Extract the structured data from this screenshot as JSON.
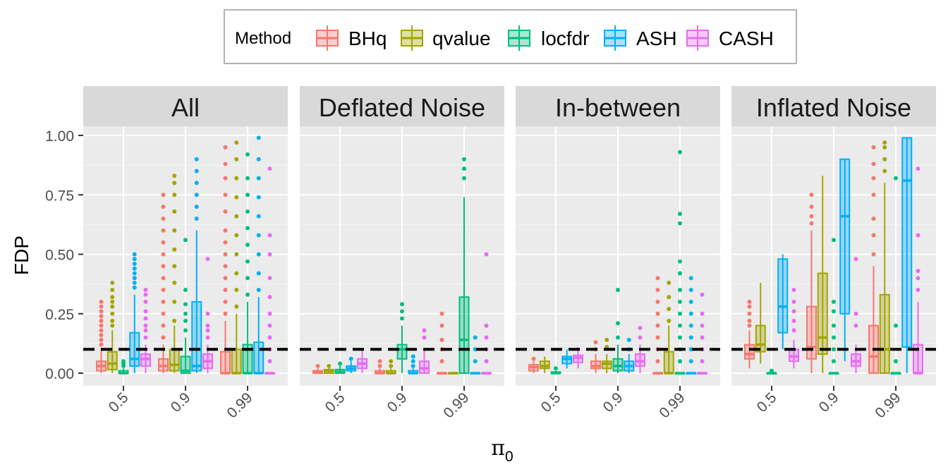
{
  "chart_data": {
    "type": "boxplot",
    "ylabel": "FDP",
    "xlabel_symbol": "π",
    "xlabel_subscript": "0",
    "ylim": [
      0,
      1.04
    ],
    "yticks": [
      "0.00",
      "0.25",
      "0.50",
      "0.75",
      "1.00"
    ],
    "categories": [
      "0.5",
      "0.9",
      "0.99"
    ],
    "reference_line": 0.1,
    "legend": {
      "title": "Method",
      "position": "top",
      "items": [
        {
          "name": "BHq",
          "color": "#F8766D"
        },
        {
          "name": "qvalue",
          "color": "#A3A500"
        },
        {
          "name": "locfdr",
          "color": "#00BF7D"
        },
        {
          "name": "ASH",
          "color": "#00B0F6"
        },
        {
          "name": "CASH",
          "color": "#E76BF3"
        }
      ]
    },
    "panels": [
      {
        "title": "All",
        "groups": [
          [
            {
              "q1": 0.01,
              "med": 0.03,
              "q3": 0.05,
              "lo": 0.0,
              "hi": 0.1,
              "out": [
                0.12,
                0.14,
                0.16,
                0.18,
                0.2,
                0.22,
                0.24,
                0.26,
                0.28,
                0.3
              ]
            },
            {
              "q1": 0.015,
              "med": 0.04,
              "q3": 0.09,
              "lo": 0.0,
              "hi": 0.18,
              "out": [
                0.2,
                0.22,
                0.25,
                0.28,
                0.3,
                0.32,
                0.35,
                0.38
              ]
            },
            {
              "q1": 0.0,
              "med": 0.0,
              "q3": 0.01,
              "lo": 0.0,
              "hi": 0.02,
              "out": [
                0.03,
                0.04,
                0.05
              ]
            },
            {
              "q1": 0.03,
              "med": 0.06,
              "q3": 0.17,
              "lo": 0.0,
              "hi": 0.33,
              "out": [
                0.36,
                0.38,
                0.4,
                0.42,
                0.44,
                0.46,
                0.48,
                0.5
              ]
            },
            {
              "q1": 0.03,
              "med": 0.06,
              "q3": 0.08,
              "lo": 0.0,
              "hi": 0.12,
              "out": [
                0.15,
                0.18,
                0.2,
                0.23,
                0.26,
                0.3,
                0.33,
                0.35
              ]
            }
          ],
          [
            {
              "q1": 0.01,
              "med": 0.03,
              "q3": 0.06,
              "lo": 0.0,
              "hi": 0.12,
              "out": [
                0.15,
                0.2,
                0.25,
                0.3,
                0.35,
                0.4,
                0.45,
                0.5,
                0.55,
                0.6,
                0.65,
                0.7,
                0.75
              ]
            },
            {
              "q1": 0.01,
              "med": 0.035,
              "q3": 0.1,
              "lo": 0.0,
              "hi": 0.2,
              "out": [
                0.22,
                0.3,
                0.38,
                0.45,
                0.52,
                0.6,
                0.68,
                0.75,
                0.8,
                0.83
              ]
            },
            {
              "q1": 0.0,
              "med": 0.01,
              "q3": 0.07,
              "lo": 0.0,
              "hi": 0.15,
              "out": [
                0.18,
                0.22,
                0.25,
                0.29,
                0.35,
                0.56
              ]
            },
            {
              "q1": 0.01,
              "med": 0.03,
              "q3": 0.3,
              "lo": 0.0,
              "hi": 0.6,
              "out": [
                0.65,
                0.7,
                0.75,
                0.8,
                0.85,
                0.9
              ]
            },
            {
              "q1": 0.02,
              "med": 0.05,
              "q3": 0.08,
              "lo": 0.0,
              "hi": 0.12,
              "out": [
                0.15,
                0.18,
                0.2,
                0.25,
                0.48
              ]
            }
          ],
          [
            {
              "q1": 0.0,
              "med": 0.0,
              "q3": 0.09,
              "lo": 0.0,
              "hi": 0.22,
              "out": [
                0.25,
                0.3,
                0.35,
                0.4,
                0.45,
                0.5,
                0.55,
                0.6,
                0.68,
                0.75,
                0.82,
                0.88,
                0.95
              ]
            },
            {
              "q1": 0.0,
              "med": 0.0,
              "q3": 0.1,
              "lo": 0.0,
              "hi": 0.25,
              "out": [
                0.28,
                0.35,
                0.42,
                0.5,
                0.58,
                0.66,
                0.74,
                0.82,
                0.9,
                0.97
              ]
            },
            {
              "q1": 0.0,
              "med": 0.0,
              "q3": 0.12,
              "lo": 0.0,
              "hi": 0.3,
              "out": [
                0.33,
                0.4,
                0.47,
                0.54,
                0.61,
                0.68,
                0.75,
                0.82,
                0.92
              ]
            },
            {
              "q1": 0.0,
              "med": 0.0,
              "q3": 0.13,
              "lo": 0.0,
              "hi": 0.32,
              "out": [
                0.35,
                0.42,
                0.5,
                0.58,
                0.66,
                0.74,
                0.82,
                0.9,
                0.99
              ]
            },
            {
              "q1": 0.0,
              "med": 0.0,
              "q3": 0.0,
              "lo": 0.0,
              "hi": 0.0,
              "out": [
                0.05,
                0.1,
                0.15,
                0.2,
                0.25,
                0.32,
                0.4,
                0.5,
                0.58,
                0.86
              ]
            }
          ]
        ]
      },
      {
        "title": "Deflated Noise",
        "groups": [
          [
            {
              "q1": 0.0,
              "med": 0.005,
              "q3": 0.01,
              "lo": 0.0,
              "hi": 0.02,
              "out": [
                0.03
              ]
            },
            {
              "q1": 0.0,
              "med": 0.01,
              "q3": 0.015,
              "lo": 0.0,
              "hi": 0.025,
              "out": [
                0.03
              ]
            },
            {
              "q1": 0.0,
              "med": 0.005,
              "q3": 0.015,
              "lo": 0.0,
              "hi": 0.03,
              "out": [
                0.04
              ]
            },
            {
              "q1": 0.01,
              "med": 0.02,
              "q3": 0.03,
              "lo": 0.0,
              "hi": 0.05,
              "out": [
                0.06
              ]
            },
            {
              "q1": 0.02,
              "med": 0.04,
              "q3": 0.06,
              "lo": 0.0,
              "hi": 0.1,
              "out": []
            }
          ],
          [
            {
              "q1": 0.0,
              "med": 0.0,
              "q3": 0.01,
              "lo": 0.0,
              "hi": 0.02,
              "out": [
                0.03,
                0.05
              ]
            },
            {
              "q1": 0.0,
              "med": 0.0,
              "q3": 0.01,
              "lo": 0.0,
              "hi": 0.02,
              "out": [
                0.03,
                0.05
              ]
            },
            {
              "q1": 0.06,
              "med": 0.1,
              "q3": 0.12,
              "lo": 0.0,
              "hi": 0.2,
              "out": [
                0.23,
                0.26,
                0.29
              ]
            },
            {
              "q1": 0.0,
              "med": 0.0,
              "q3": 0.01,
              "lo": 0.0,
              "hi": 0.02,
              "out": [
                0.03,
                0.05,
                0.07
              ]
            },
            {
              "q1": 0.0,
              "med": 0.02,
              "q3": 0.05,
              "lo": 0.0,
              "hi": 0.1,
              "out": [
                0.15,
                0.18
              ]
            }
          ],
          [
            {
              "q1": 0.0,
              "med": 0.0,
              "q3": 0.0,
              "lo": 0.0,
              "hi": 0.0,
              "out": [
                0.05,
                0.1,
                0.14,
                0.2,
                0.25
              ]
            },
            {
              "q1": 0.0,
              "med": 0.0,
              "q3": 0.0,
              "lo": 0.0,
              "hi": 0.0,
              "out": []
            },
            {
              "q1": 0.0,
              "med": 0.14,
              "q3": 0.32,
              "lo": 0.0,
              "hi": 0.74,
              "out": [
                0.82,
                0.86,
                0.9
              ]
            },
            {
              "q1": 0.0,
              "med": 0.0,
              "q3": 0.0,
              "lo": 0.0,
              "hi": 0.0,
              "out": [
                0.05,
                0.1,
                0.15
              ]
            },
            {
              "q1": 0.0,
              "med": 0.0,
              "q3": 0.0,
              "lo": 0.0,
              "hi": 0.0,
              "out": [
                0.05,
                0.1,
                0.15,
                0.2,
                0.5
              ]
            }
          ]
        ]
      },
      {
        "title": "In-between",
        "groups": [
          [
            {
              "q1": 0.01,
              "med": 0.025,
              "q3": 0.035,
              "lo": 0.0,
              "hi": 0.05,
              "out": [
                0.06
              ]
            },
            {
              "q1": 0.02,
              "med": 0.03,
              "q3": 0.05,
              "lo": 0.0,
              "hi": 0.07,
              "out": []
            },
            {
              "q1": 0.0,
              "med": 0.0,
              "q3": 0.005,
              "lo": 0.0,
              "hi": 0.01,
              "out": [
                0.02
              ]
            },
            {
              "q1": 0.04,
              "med": 0.06,
              "q3": 0.07,
              "lo": 0.02,
              "hi": 0.1,
              "out": []
            },
            {
              "q1": 0.045,
              "med": 0.065,
              "q3": 0.075,
              "lo": 0.02,
              "hi": 0.11,
              "out": []
            }
          ],
          [
            {
              "q1": 0.02,
              "med": 0.03,
              "q3": 0.05,
              "lo": 0.0,
              "hi": 0.08,
              "out": [
                0.1,
                0.13
              ]
            },
            {
              "q1": 0.02,
              "med": 0.04,
              "q3": 0.05,
              "lo": 0.0,
              "hi": 0.08,
              "out": [
                0.11,
                0.14
              ]
            },
            {
              "q1": 0.01,
              "med": 0.03,
              "q3": 0.06,
              "lo": 0.0,
              "hi": 0.12,
              "out": [
                0.15,
                0.21,
                0.35
              ]
            },
            {
              "q1": 0.01,
              "med": 0.03,
              "q3": 0.05,
              "lo": 0.0,
              "hi": 0.08,
              "out": [
                0.1,
                0.14
              ]
            },
            {
              "q1": 0.03,
              "med": 0.05,
              "q3": 0.08,
              "lo": 0.0,
              "hi": 0.12,
              "out": [
                0.15,
                0.19
              ]
            }
          ],
          [
            {
              "q1": 0.0,
              "med": 0.0,
              "q3": 0.0,
              "lo": 0.0,
              "hi": 0.0,
              "out": [
                0.05,
                0.1,
                0.15,
                0.2,
                0.25,
                0.3,
                0.35,
                0.4
              ]
            },
            {
              "q1": 0.0,
              "med": 0.0,
              "q3": 0.09,
              "lo": 0.0,
              "hi": 0.2,
              "out": [
                0.22,
                0.27,
                0.32,
                0.38
              ]
            },
            {
              "q1": 0.0,
              "med": 0.0,
              "q3": 0.0,
              "lo": 0.0,
              "hi": 0.0,
              "out": [
                0.05,
                0.1,
                0.15,
                0.2,
                0.25,
                0.3,
                0.35,
                0.42,
                0.47,
                0.63,
                0.67,
                0.93
              ]
            },
            {
              "q1": 0.0,
              "med": 0.0,
              "q3": 0.0,
              "lo": 0.0,
              "hi": 0.0,
              "out": [
                0.05,
                0.1,
                0.15,
                0.2,
                0.25,
                0.3,
                0.35,
                0.4
              ]
            },
            {
              "q1": 0.0,
              "med": 0.0,
              "q3": 0.0,
              "lo": 0.0,
              "hi": 0.0,
              "out": [
                0.05,
                0.1,
                0.15,
                0.2,
                0.25,
                0.33
              ]
            }
          ]
        ]
      },
      {
        "title": "Inflated Noise",
        "groups": [
          [
            {
              "q1": 0.06,
              "med": 0.08,
              "q3": 0.12,
              "lo": 0.02,
              "hi": 0.18,
              "out": [
                0.2,
                0.22,
                0.25,
                0.28,
                0.3
              ]
            },
            {
              "q1": 0.09,
              "med": 0.12,
              "q3": 0.2,
              "lo": 0.04,
              "hi": 0.38,
              "out": []
            },
            {
              "q1": 0.0,
              "med": 0.0,
              "q3": 0.0,
              "lo": 0.0,
              "hi": 0.0,
              "out": [
                0.01
              ]
            },
            {
              "q1": 0.17,
              "med": 0.28,
              "q3": 0.48,
              "lo": 0.1,
              "hi": 0.5,
              "out": []
            },
            {
              "q1": 0.05,
              "med": 0.07,
              "q3": 0.1,
              "lo": 0.02,
              "hi": 0.14,
              "out": [
                0.18,
                0.22,
                0.26,
                0.3,
                0.35
              ]
            }
          ],
          [
            {
              "q1": 0.06,
              "med": 0.11,
              "q3": 0.28,
              "lo": 0.0,
              "hi": 0.6,
              "out": [
                0.63,
                0.66,
                0.7,
                0.75
              ]
            },
            {
              "q1": 0.08,
              "med": 0.15,
              "q3": 0.42,
              "lo": 0.0,
              "hi": 0.83,
              "out": []
            },
            {
              "q1": 0.0,
              "med": 0.0,
              "q3": 0.0,
              "lo": 0.0,
              "hi": 0.0,
              "out": [
                0.05,
                0.1,
                0.15,
                0.2,
                0.26,
                0.3,
                0.56
              ]
            },
            {
              "q1": 0.25,
              "med": 0.66,
              "q3": 0.9,
              "lo": 0.05,
              "hi": 0.9,
              "out": []
            },
            {
              "q1": 0.03,
              "med": 0.05,
              "q3": 0.08,
              "lo": 0.0,
              "hi": 0.12,
              "out": [
                0.2,
                0.25,
                0.48
              ]
            }
          ],
          [
            {
              "q1": 0.0,
              "med": 0.07,
              "q3": 0.2,
              "lo": 0.0,
              "hi": 0.45,
              "out": [
                0.5,
                0.58,
                0.65,
                0.75,
                0.82,
                0.88,
                0.95
              ]
            },
            {
              "q1": 0.0,
              "med": 0.1,
              "q3": 0.33,
              "lo": 0.0,
              "hi": 0.8,
              "out": [
                0.85,
                0.9,
                0.95,
                0.97
              ]
            },
            {
              "q1": 0.0,
              "med": 0.0,
              "q3": 0.0,
              "lo": 0.0,
              "hi": 0.0,
              "out": [
                0.05,
                0.2,
                0.82
              ]
            },
            {
              "q1": 0.11,
              "med": 0.81,
              "q3": 0.99,
              "lo": 0.0,
              "hi": 0.99,
              "out": []
            },
            {
              "q1": 0.0,
              "med": 0.0,
              "q3": 0.12,
              "lo": 0.0,
              "hi": 0.3,
              "out": [
                0.35,
                0.4,
                0.43,
                0.58,
                0.86
              ]
            }
          ]
        ]
      }
    ]
  }
}
